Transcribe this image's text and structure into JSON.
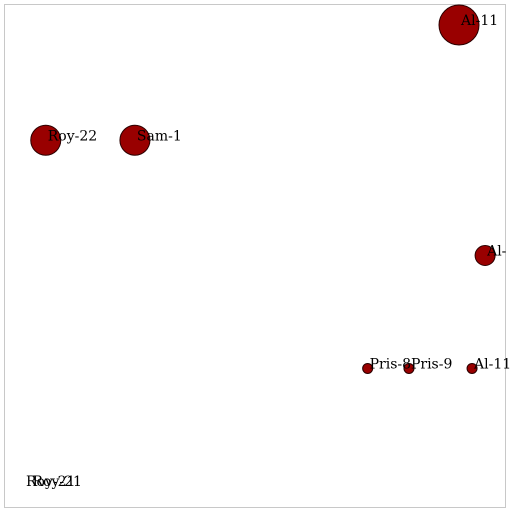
{
  "chart_data": {
    "type": "scatter",
    "title": "",
    "xlabel": "",
    "ylabel": "",
    "grid": false,
    "legend": "none",
    "node_color": "#990000",
    "node_stroke": "#2a0000",
    "frame_color": "#c8c8c8",
    "points": [
      {
        "label": "Al-11",
        "x": 1.0,
        "y": 1.0,
        "size": 20
      },
      {
        "label": "Roy-22",
        "x": 0.05,
        "y": 0.75,
        "size": 15
      },
      {
        "label": "Sam-1",
        "x": 0.255,
        "y": 0.75,
        "size": 15
      },
      {
        "label": "Al-",
        "x": 1.06,
        "y": 0.5,
        "size": 10
      },
      {
        "label": "Pris-8",
        "x": 0.79,
        "y": 0.255,
        "size": 5
      },
      {
        "label": "Pris-9",
        "x": 0.885,
        "y": 0.255,
        "size": 5
      },
      {
        "label": "Al-11",
        "x": 1.03,
        "y": 0.255,
        "size": 5
      },
      {
        "label": "Roy-21",
        "x": 0.0,
        "y": -0.0,
        "size": 0
      },
      {
        "label": "Roy-21",
        "x": 0.015,
        "y": -0.0,
        "size": 0
      }
    ]
  }
}
